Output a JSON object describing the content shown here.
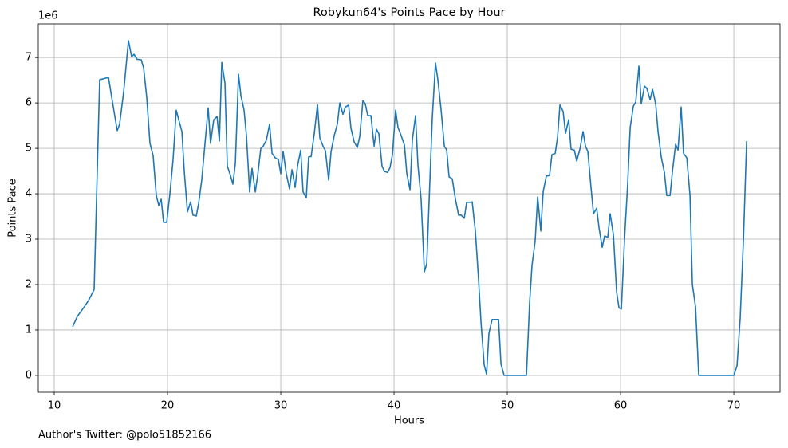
{
  "chart_data": {
    "type": "line",
    "title": "Robykun64's Points Pace by Hour",
    "xlabel": "Hours",
    "ylabel": "Points Pace",
    "y_offset_label": "1e6",
    "footnote": "Author's Twitter: @polo51852166",
    "xlim": [
      8.59,
      74.08
    ],
    "ylim": [
      -0.37,
      7.74
    ],
    "xticks": [
      10,
      20,
      30,
      40,
      50,
      60,
      70
    ],
    "yticks": [
      0,
      1,
      2,
      3,
      4,
      5,
      6,
      7
    ],
    "grid": true,
    "series": [
      {
        "name": "Points Pace",
        "color": "#1f77b4",
        "x": [
          11.62,
          12.04,
          12.54,
          13.03,
          13.52,
          14.01,
          14.44,
          14.79,
          15.14,
          15.56,
          15.77,
          16.13,
          16.55,
          16.83,
          17.04,
          17.32,
          17.68,
          17.89,
          18.17,
          18.45,
          18.73,
          19.01,
          19.23,
          19.44,
          19.65,
          19.93,
          20.21,
          20.49,
          20.77,
          20.99,
          21.27,
          21.48,
          21.76,
          22.04,
          22.25,
          22.54,
          22.75,
          23.03,
          23.31,
          23.59,
          23.8,
          24.08,
          24.37,
          24.58,
          24.79,
          25.07,
          25.28,
          25.56,
          25.77,
          25.99,
          26.27,
          26.48,
          26.76,
          26.97,
          27.25,
          27.46,
          27.75,
          27.96,
          28.24,
          28.45,
          28.73,
          29.01,
          29.23,
          29.51,
          29.79,
          30.0,
          30.21,
          30.49,
          30.77,
          30.99,
          31.27,
          31.48,
          31.76,
          31.97,
          32.25,
          32.46,
          32.68,
          32.96,
          33.24,
          33.45,
          33.73,
          33.94,
          34.23,
          34.44,
          34.72,
          35.0,
          35.21,
          35.49,
          35.7,
          35.99,
          36.2,
          36.48,
          36.76,
          36.97,
          37.25,
          37.46,
          37.68,
          37.96,
          38.24,
          38.45,
          38.66,
          38.94,
          39.15,
          39.44,
          39.65,
          39.86,
          40.14,
          40.35,
          40.63,
          40.92,
          41.13,
          41.41,
          41.62,
          41.9,
          42.11,
          42.39,
          42.68,
          42.89,
          43.17,
          43.38,
          43.66,
          43.87,
          44.15,
          44.44,
          44.65,
          44.86,
          45.14,
          45.42,
          45.7,
          45.92,
          46.2,
          46.41,
          46.69,
          46.9,
          47.18,
          47.46,
          47.68,
          47.96,
          48.17,
          48.38,
          48.66,
          48.94,
          49.23,
          49.44,
          49.72,
          50.2,
          50.7,
          51.2,
          51.69,
          51.97,
          52.18,
          52.46,
          52.68,
          52.96,
          53.17,
          53.45,
          53.73,
          53.94,
          54.23,
          54.44,
          54.65,
          54.93,
          55.14,
          55.42,
          55.63,
          55.92,
          56.13,
          56.41,
          56.69,
          56.9,
          57.11,
          57.39,
          57.61,
          57.89,
          58.1,
          58.38,
          58.59,
          58.87,
          59.08,
          59.37,
          59.65,
          59.86,
          60.07,
          60.35,
          60.63,
          60.85,
          61.13,
          61.34,
          61.62,
          61.83,
          62.11,
          62.32,
          62.61,
          62.82,
          63.1,
          63.31,
          63.59,
          63.87,
          64.08,
          64.37,
          64.58,
          64.86,
          65.07,
          65.35,
          65.56,
          65.85,
          66.13,
          66.34,
          66.62,
          66.9,
          67.5,
          68.2,
          68.9,
          69.5,
          70.0,
          70.28,
          70.56,
          70.85,
          71.13
        ],
        "values": [
          1.07,
          1.3,
          1.47,
          1.65,
          1.89,
          6.51,
          6.54,
          6.56,
          6.02,
          5.39,
          5.53,
          6.25,
          7.37,
          7.02,
          7.07,
          6.96,
          6.95,
          6.77,
          6.11,
          5.11,
          4.84,
          3.96,
          3.74,
          3.88,
          3.37,
          3.37,
          4.0,
          4.75,
          5.84,
          5.63,
          5.37,
          4.49,
          3.6,
          3.82,
          3.53,
          3.51,
          3.79,
          4.32,
          5.11,
          5.89,
          5.11,
          5.63,
          5.7,
          5.16,
          6.89,
          6.44,
          4.61,
          4.4,
          4.21,
          4.67,
          6.63,
          6.16,
          5.84,
          5.28,
          4.04,
          4.56,
          4.04,
          4.4,
          5.0,
          5.05,
          5.18,
          5.53,
          4.89,
          4.79,
          4.75,
          4.44,
          4.93,
          4.44,
          4.11,
          4.53,
          4.14,
          4.61,
          4.96,
          4.04,
          3.91,
          4.81,
          4.82,
          5.33,
          5.96,
          5.23,
          5.05,
          4.95,
          4.3,
          4.93,
          5.28,
          5.54,
          6.0,
          5.75,
          5.91,
          5.95,
          5.44,
          5.14,
          5.02,
          5.26,
          6.05,
          5.98,
          5.72,
          5.72,
          5.05,
          5.42,
          5.32,
          4.61,
          4.49,
          4.47,
          4.58,
          4.86,
          5.84,
          5.46,
          5.28,
          5.07,
          4.44,
          4.09,
          5.19,
          5.72,
          4.63,
          3.88,
          2.28,
          2.46,
          4.32,
          5.68,
          6.88,
          6.51,
          5.86,
          5.05,
          4.96,
          4.37,
          4.33,
          3.88,
          3.53,
          3.53,
          3.46,
          3.81,
          3.81,
          3.82,
          3.18,
          2.12,
          1.16,
          0.23,
          0.02,
          0.93,
          1.23,
          1.23,
          1.23,
          0.25,
          0,
          0,
          0,
          0,
          0,
          1.6,
          2.42,
          2.96,
          3.93,
          3.18,
          4.05,
          4.39,
          4.4,
          4.86,
          4.89,
          5.25,
          5.96,
          5.81,
          5.33,
          5.63,
          4.98,
          4.96,
          4.72,
          4.98,
          5.37,
          5.05,
          4.93,
          4.14,
          3.56,
          3.68,
          3.25,
          2.82,
          3.07,
          3.04,
          3.56,
          3.09,
          1.84,
          1.49,
          1.46,
          3.0,
          4.23,
          5.46,
          5.93,
          6.02,
          6.81,
          5.98,
          6.37,
          6.32,
          6.07,
          6.3,
          5.98,
          5.37,
          4.81,
          4.47,
          3.96,
          3.96,
          4.49,
          5.09,
          4.96,
          5.91,
          4.89,
          4.79,
          3.96,
          2.0,
          1.51,
          0,
          0,
          0,
          0,
          0,
          0,
          0.21,
          1.25,
          3.0,
          5.16
        ]
      }
    ]
  }
}
